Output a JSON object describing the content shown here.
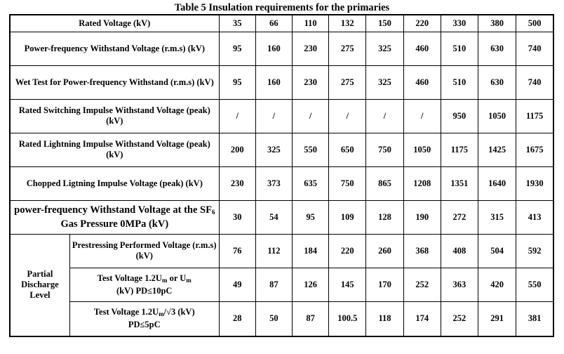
{
  "caption": "Table 5    Insulation requirements for the primaries",
  "rows": [
    {
      "label": "Rated Voltage (kV)",
      "values": [
        "35",
        "66",
        "110",
        "132",
        "150",
        "220",
        "330",
        "380",
        "500"
      ]
    },
    {
      "label": "Power-frequency Withstand Voltage (r.m.s) (kV)",
      "values": [
        "95",
        "160",
        "230",
        "275",
        "325",
        "460",
        "510",
        "630",
        "740"
      ]
    },
    {
      "label": "Wet Test for Power-frequency Withstand (r.m.s) (kV)",
      "values": [
        "95",
        "160",
        "230",
        "275",
        "325",
        "460",
        "510",
        "630",
        "740"
      ]
    },
    {
      "label": "Rated Switching Impulse Withstand Voltage (peak) (kV)",
      "values": [
        "/",
        "/",
        "/",
        "/",
        "/",
        "/",
        "950",
        "1050",
        "1175"
      ]
    },
    {
      "label": "Rated Lightning Impulse Withstand Voltage (peak) (kV)",
      "values": [
        "200",
        "325",
        "550",
        "650",
        "750",
        "1050",
        "1175",
        "1425",
        "1675"
      ]
    },
    {
      "label": "Chopped Ligtning Impulse Voltage (peak) (kV)",
      "values": [
        "230",
        "373",
        "635",
        "750",
        "865",
        "1208",
        "1351",
        "1640",
        "1930"
      ]
    },
    {
      "label_pre": "power-frequency Withstand Voltage at the SF",
      "label_sub": "6",
      "label_post": " Gas Pressure 0MPa (kV)",
      "values": [
        "30",
        "54",
        "95",
        "109",
        "128",
        "190",
        "272",
        "315",
        "413"
      ]
    }
  ],
  "partial": {
    "group_label": "Partial Discharge Level",
    "rows": [
      {
        "label": "Prestressing Performed Voltage (r.m.s) (kV)",
        "values": [
          "76",
          "112",
          "184",
          "220",
          "260",
          "368",
          "408",
          "504",
          "592"
        ]
      },
      {
        "label_a": "Test Voltage 1.2U",
        "label_sub1": "m",
        "label_b": " or U",
        "label_sub2": "m",
        "label_c": " (kV) PD≤10pC",
        "values": [
          "49",
          "87",
          "126",
          "145",
          "170",
          "252",
          "363",
          "420",
          "550"
        ]
      },
      {
        "label_a": "Test Voltage 1.2U",
        "label_sub1": "m",
        "label_b": "/√3 (kV)",
        "label_c": "PD≤5pC",
        "values": [
          "28",
          "50",
          "87",
          "100.5",
          "118",
          "174",
          "252",
          "291",
          "381"
        ]
      }
    ]
  }
}
